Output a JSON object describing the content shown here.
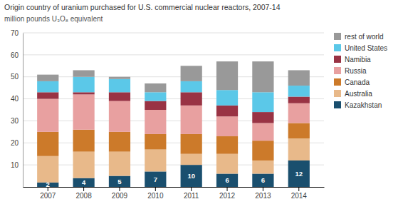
{
  "chart_data": {
    "type": "bar",
    "stacked": true,
    "title": "Origin country  of uranium purchased for U.S. commercial nuclear reactors, 2007-14",
    "subtitle": "million pounds  U₃O₈ equivalent",
    "categories": [
      "2007",
      "2008",
      "2009",
      "2010",
      "2011",
      "2012",
      "2013",
      "2014"
    ],
    "series": [
      {
        "name": "Kazakhstan",
        "color": "#1a4f6e",
        "values": [
          2,
          4,
          5,
          7,
          10,
          6,
          6,
          12
        ],
        "data_labels": true
      },
      {
        "name": "Australia",
        "color": "#e8b98a",
        "values": [
          12,
          12,
          11,
          10,
          5,
          9,
          6,
          10
        ]
      },
      {
        "name": "Canada",
        "color": "#cc7a2a",
        "values": [
          11,
          10,
          9,
          7,
          9,
          8,
          9,
          7
        ]
      },
      {
        "name": "Russia",
        "color": "#e8a0a0",
        "values": [
          15,
          16,
          14,
          11,
          13,
          9,
          8,
          9
        ]
      },
      {
        "name": "Namibia",
        "color": "#993344",
        "values": [
          3,
          1,
          4,
          4,
          6,
          5,
          5,
          3
        ]
      },
      {
        "name": "United States",
        "color": "#5bc8e8",
        "values": [
          5,
          7,
          6,
          4,
          5,
          7,
          9,
          5
        ]
      },
      {
        "name": "rest of world",
        "color": "#999999",
        "values": [
          3,
          3,
          1,
          4,
          7,
          13,
          14,
          7
        ]
      }
    ],
    "ylim": [
      0,
      70
    ],
    "yticks": [
      10,
      20,
      30,
      40,
      50,
      60,
      70
    ],
    "grid": true,
    "legend": "right"
  }
}
